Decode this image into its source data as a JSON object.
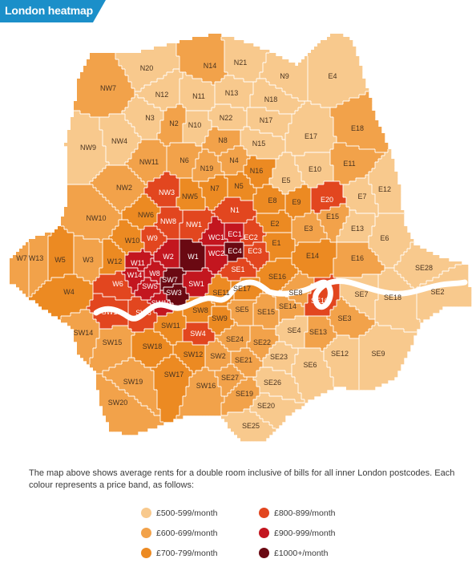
{
  "header": {
    "title": "London heatmap"
  },
  "colors": {
    "title_bg": "#1b8fc9",
    "band_500": "#f8c98d",
    "band_600": "#f2a24a",
    "band_700": "#ec8a22",
    "band_800": "#e2461f",
    "band_900": "#c3161f",
    "band_1000": "#6a0912",
    "river": "#ffffff"
  },
  "postcodes": [
    {
      "code": "N20",
      "band": "500"
    },
    {
      "code": "N14",
      "band": "600"
    },
    {
      "code": "N21",
      "band": "500"
    },
    {
      "code": "N9",
      "band": "500"
    },
    {
      "code": "E4",
      "band": "500"
    },
    {
      "code": "NW7",
      "band": "600"
    },
    {
      "code": "N12",
      "band": "500"
    },
    {
      "code": "N11",
      "band": "500"
    },
    {
      "code": "N13",
      "band": "500"
    },
    {
      "code": "N18",
      "band": "500"
    },
    {
      "code": "N3",
      "band": "500"
    },
    {
      "code": "N2",
      "band": "600"
    },
    {
      "code": "N22",
      "band": "500"
    },
    {
      "code": "N17",
      "band": "500"
    },
    {
      "code": "N10",
      "band": "500"
    },
    {
      "code": "E17",
      "band": "500"
    },
    {
      "code": "E18",
      "band": "600"
    },
    {
      "code": "NW9",
      "band": "500"
    },
    {
      "code": "NW4",
      "band": "500"
    },
    {
      "code": "N8",
      "band": "600"
    },
    {
      "code": "N15",
      "band": "500"
    },
    {
      "code": "NW11",
      "band": "600"
    },
    {
      "code": "N6",
      "band": "600"
    },
    {
      "code": "N4",
      "band": "600"
    },
    {
      "code": "N19",
      "band": "600"
    },
    {
      "code": "N16",
      "band": "700"
    },
    {
      "code": "E10",
      "band": "500"
    },
    {
      "code": "E11",
      "band": "600"
    },
    {
      "code": "E5",
      "band": "500"
    },
    {
      "code": "NW2",
      "band": "600"
    },
    {
      "code": "NW3",
      "band": "800"
    },
    {
      "code": "NW5",
      "band": "700"
    },
    {
      "code": "N7",
      "band": "700"
    },
    {
      "code": "N5",
      "band": "700"
    },
    {
      "code": "E12",
      "band": "500"
    },
    {
      "code": "E8",
      "band": "700"
    },
    {
      "code": "E9",
      "band": "700"
    },
    {
      "code": "E20",
      "band": "800"
    },
    {
      "code": "E7",
      "band": "500"
    },
    {
      "code": "N1",
      "band": "800"
    },
    {
      "code": "NW6",
      "band": "700"
    },
    {
      "code": "NW10",
      "band": "600"
    },
    {
      "code": "NW8",
      "band": "800"
    },
    {
      "code": "NW1",
      "band": "800"
    },
    {
      "code": "E15",
      "band": "600"
    },
    {
      "code": "E2",
      "band": "700"
    },
    {
      "code": "E3",
      "band": "600"
    },
    {
      "code": "E13",
      "band": "500"
    },
    {
      "code": "E6",
      "band": "500"
    },
    {
      "code": "W10",
      "band": "700"
    },
    {
      "code": "W9",
      "band": "800"
    },
    {
      "code": "WC1",
      "band": "900"
    },
    {
      "code": "EC1",
      "band": "900"
    },
    {
      "code": "EC2",
      "band": "800"
    },
    {
      "code": "E1",
      "band": "700"
    },
    {
      "code": "W7",
      "band": "600"
    },
    {
      "code": "W13",
      "band": "600"
    },
    {
      "code": "W5",
      "band": "700"
    },
    {
      "code": "W3",
      "band": "600"
    },
    {
      "code": "W12",
      "band": "700"
    },
    {
      "code": "W11",
      "band": "900"
    },
    {
      "code": "W2",
      "band": "900"
    },
    {
      "code": "W1",
      "band": "1000"
    },
    {
      "code": "WC2",
      "band": "900"
    },
    {
      "code": "EC4",
      "band": "1000"
    },
    {
      "code": "EC3",
      "band": "800"
    },
    {
      "code": "E14",
      "band": "700"
    },
    {
      "code": "E16",
      "band": "600"
    },
    {
      "code": "SE28",
      "band": "500"
    },
    {
      "code": "W14",
      "band": "900"
    },
    {
      "code": "W8",
      "band": "900"
    },
    {
      "code": "SW7",
      "band": "1000"
    },
    {
      "code": "SW1",
      "band": "900"
    },
    {
      "code": "SE1",
      "band": "800"
    },
    {
      "code": "SE16",
      "band": "700"
    },
    {
      "code": "W4",
      "band": "700"
    },
    {
      "code": "W6",
      "band": "800"
    },
    {
      "code": "SW5",
      "band": "900"
    },
    {
      "code": "SW3",
      "band": "1000"
    },
    {
      "code": "SW10",
      "band": "900"
    },
    {
      "code": "SE11",
      "band": "700"
    },
    {
      "code": "SE17",
      "band": "700"
    },
    {
      "code": "SE8",
      "band": "600"
    },
    {
      "code": "SE7",
      "band": "500"
    },
    {
      "code": "SE18",
      "band": "500"
    },
    {
      "code": "SE2",
      "band": "500"
    },
    {
      "code": "SW13",
      "band": "800"
    },
    {
      "code": "SW6",
      "band": "800"
    },
    {
      "code": "SW8",
      "band": "700"
    },
    {
      "code": "SE5",
      "band": "600"
    },
    {
      "code": "SE15",
      "band": "600"
    },
    {
      "code": "SE14",
      "band": "600"
    },
    {
      "code": "SE10",
      "band": "800"
    },
    {
      "code": "SE3",
      "band": "600"
    },
    {
      "code": "SW14",
      "band": "600"
    },
    {
      "code": "SW11",
      "band": "700"
    },
    {
      "code": "SW9",
      "band": "700"
    },
    {
      "code": "SW4",
      "band": "800"
    },
    {
      "code": "SE24",
      "band": "600"
    },
    {
      "code": "SE22",
      "band": "600"
    },
    {
      "code": "SE4",
      "band": "500"
    },
    {
      "code": "SE13",
      "band": "600"
    },
    {
      "code": "SW15",
      "band": "600"
    },
    {
      "code": "SW18",
      "band": "700"
    },
    {
      "code": "SW12",
      "band": "700"
    },
    {
      "code": "SW2",
      "band": "600"
    },
    {
      "code": "SE21",
      "band": "600"
    },
    {
      "code": "SE23",
      "band": "500"
    },
    {
      "code": "SE12",
      "band": "500"
    },
    {
      "code": "SE9",
      "band": "500"
    },
    {
      "code": "SE6",
      "band": "500"
    },
    {
      "code": "SW19",
      "band": "600"
    },
    {
      "code": "SW17",
      "band": "700"
    },
    {
      "code": "SW16",
      "band": "600"
    },
    {
      "code": "SE27",
      "band": "600"
    },
    {
      "code": "SE26",
      "band": "500"
    },
    {
      "code": "SW20",
      "band": "600"
    },
    {
      "code": "SE19",
      "band": "600"
    },
    {
      "code": "SE20",
      "band": "500"
    },
    {
      "code": "SE25",
      "band": "500"
    }
  ],
  "description": "The map above shows average rents for a double room inclusive of bills for all inner London postcodes. Each colour represents a price band, as follows:",
  "legend": [
    {
      "label": "£500-599/month",
      "band": "500"
    },
    {
      "label": "£600-699/month",
      "band": "600"
    },
    {
      "label": "£700-799/month",
      "band": "700"
    },
    {
      "label": "£800-899/month",
      "band": "800"
    },
    {
      "label": "£900-999/month",
      "band": "900"
    },
    {
      "label": "£1000+/month",
      "band": "1000"
    }
  ]
}
